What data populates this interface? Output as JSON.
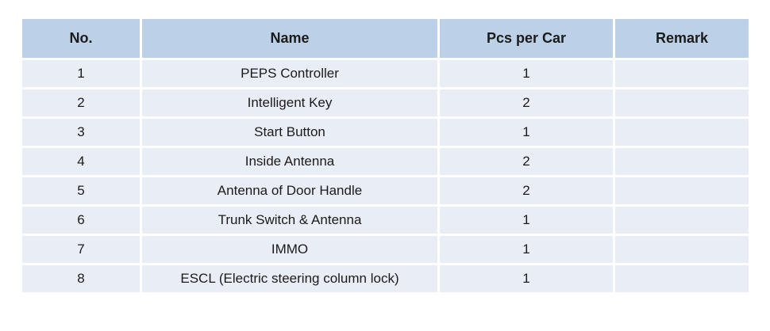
{
  "table": {
    "columns": [
      "No.",
      "Name",
      "Pcs per Car",
      "Remark"
    ],
    "rows": [
      {
        "no": "1",
        "name": "PEPS Controller",
        "pcs": "1",
        "remark": ""
      },
      {
        "no": "2",
        "name": "Intelligent Key",
        "pcs": "2",
        "remark": ""
      },
      {
        "no": "3",
        "name": "Start Button",
        "pcs": "1",
        "remark": ""
      },
      {
        "no": "4",
        "name": "Inside Antenna",
        "pcs": "2",
        "remark": ""
      },
      {
        "no": "5",
        "name": "Antenna of Door Handle",
        "pcs": "2",
        "remark": ""
      },
      {
        "no": "6",
        "name": "Trunk Switch & Antenna",
        "pcs": "1",
        "remark": ""
      },
      {
        "no": "7",
        "name": "IMMO",
        "pcs": "1",
        "remark": ""
      },
      {
        "no": "8",
        "name": "ESCL (Electric steering column lock)",
        "pcs": "1",
        "remark": ""
      }
    ],
    "colors": {
      "header_bg": "#bcd1e8",
      "row_bg": "#e9edf5",
      "grid": "#ffffff",
      "text": "#1b1b1b"
    }
  }
}
